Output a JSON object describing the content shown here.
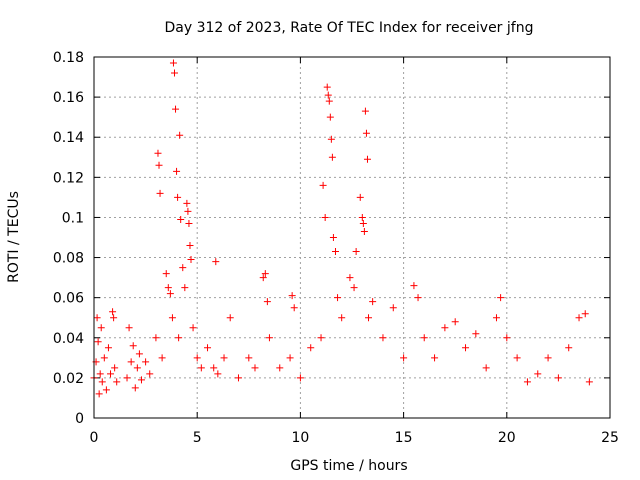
{
  "chart_data": {
    "type": "scatter",
    "title": "Day 312 of 2023, Rate Of TEC Index for receiver jfng",
    "xlabel": "GPS time / hours",
    "ylabel": "ROTI / TECUs",
    "xlim": [
      0,
      25
    ],
    "ylim": [
      0,
      0.18
    ],
    "xticks": [
      0,
      5,
      10,
      15,
      20,
      25
    ],
    "xtick_labels": [
      "0",
      "5",
      "10",
      "15",
      "20",
      "25"
    ],
    "yticks": [
      0,
      0.02,
      0.04,
      0.06,
      0.08,
      0.1,
      0.12,
      0.14,
      0.16,
      0.18
    ],
    "ytick_labels": [
      "0",
      "0.02",
      "0.04",
      "0.06",
      "0.08",
      "0.1",
      "0.12",
      "0.14",
      "0.16",
      "0.18"
    ],
    "grid": true,
    "marker": "+",
    "color": "#ff0000",
    "series": [
      {
        "name": "ROTI",
        "points": [
          [
            0.0,
            0.02
          ],
          [
            0.1,
            0.028
          ],
          [
            0.15,
            0.05
          ],
          [
            0.2,
            0.038
          ],
          [
            0.25,
            0.012
          ],
          [
            0.3,
            0.022
          ],
          [
            0.35,
            0.045
          ],
          [
            0.4,
            0.018
          ],
          [
            0.5,
            0.03
          ],
          [
            0.6,
            0.014
          ],
          [
            0.7,
            0.035
          ],
          [
            0.8,
            0.022
          ],
          [
            0.9,
            0.053
          ],
          [
            0.95,
            0.05
          ],
          [
            1.0,
            0.025
          ],
          [
            1.1,
            0.018
          ],
          [
            1.6,
            0.02
          ],
          [
            1.7,
            0.045
          ],
          [
            1.8,
            0.028
          ],
          [
            1.9,
            0.036
          ],
          [
            2.0,
            0.015
          ],
          [
            2.1,
            0.025
          ],
          [
            2.2,
            0.032
          ],
          [
            2.3,
            0.019
          ],
          [
            2.5,
            0.028
          ],
          [
            2.7,
            0.022
          ],
          [
            3.0,
            0.04
          ],
          [
            3.1,
            0.132
          ],
          [
            3.15,
            0.126
          ],
          [
            3.2,
            0.112
          ],
          [
            3.3,
            0.03
          ],
          [
            3.5,
            0.072
          ],
          [
            3.6,
            0.065
          ],
          [
            3.7,
            0.062
          ],
          [
            3.8,
            0.05
          ],
          [
            3.85,
            0.177
          ],
          [
            3.9,
            0.172
          ],
          [
            3.95,
            0.154
          ],
          [
            4.0,
            0.123
          ],
          [
            4.05,
            0.11
          ],
          [
            4.1,
            0.04
          ],
          [
            4.15,
            0.141
          ],
          [
            4.2,
            0.099
          ],
          [
            4.3,
            0.075
          ],
          [
            4.4,
            0.065
          ],
          [
            4.5,
            0.107
          ],
          [
            4.55,
            0.103
          ],
          [
            4.6,
            0.097
          ],
          [
            4.65,
            0.086
          ],
          [
            4.7,
            0.079
          ],
          [
            4.8,
            0.045
          ],
          [
            5.0,
            0.03
          ],
          [
            5.2,
            0.025
          ],
          [
            5.5,
            0.035
          ],
          [
            5.8,
            0.025
          ],
          [
            5.9,
            0.078
          ],
          [
            6.0,
            0.022
          ],
          [
            6.3,
            0.03
          ],
          [
            6.6,
            0.05
          ],
          [
            7.0,
            0.02
          ],
          [
            7.5,
            0.03
          ],
          [
            7.8,
            0.025
          ],
          [
            8.2,
            0.07
          ],
          [
            8.3,
            0.072
          ],
          [
            8.4,
            0.058
          ],
          [
            8.5,
            0.04
          ],
          [
            9.0,
            0.025
          ],
          [
            9.5,
            0.03
          ],
          [
            9.6,
            0.061
          ],
          [
            9.7,
            0.055
          ],
          [
            10.0,
            0.02
          ],
          [
            10.5,
            0.035
          ],
          [
            11.0,
            0.04
          ],
          [
            11.1,
            0.116
          ],
          [
            11.2,
            0.1
          ],
          [
            11.3,
            0.165
          ],
          [
            11.35,
            0.161
          ],
          [
            11.4,
            0.158
          ],
          [
            11.45,
            0.15
          ],
          [
            11.5,
            0.139
          ],
          [
            11.55,
            0.13
          ],
          [
            11.6,
            0.09
          ],
          [
            11.7,
            0.083
          ],
          [
            11.8,
            0.06
          ],
          [
            12.0,
            0.05
          ],
          [
            12.4,
            0.07
          ],
          [
            12.6,
            0.065
          ],
          [
            12.7,
            0.083
          ],
          [
            12.9,
            0.11
          ],
          [
            13.0,
            0.1
          ],
          [
            13.05,
            0.097
          ],
          [
            13.1,
            0.093
          ],
          [
            13.15,
            0.153
          ],
          [
            13.2,
            0.142
          ],
          [
            13.25,
            0.129
          ],
          [
            13.3,
            0.05
          ],
          [
            13.5,
            0.058
          ],
          [
            14.0,
            0.04
          ],
          [
            14.5,
            0.055
          ],
          [
            15.0,
            0.03
          ],
          [
            15.5,
            0.066
          ],
          [
            15.7,
            0.06
          ],
          [
            16.0,
            0.04
          ],
          [
            16.5,
            0.03
          ],
          [
            17.0,
            0.045
          ],
          [
            17.5,
            0.048
          ],
          [
            18.0,
            0.035
          ],
          [
            18.5,
            0.042
          ],
          [
            19.0,
            0.025
          ],
          [
            19.5,
            0.05
          ],
          [
            19.7,
            0.06
          ],
          [
            20.0,
            0.04
          ],
          [
            20.5,
            0.03
          ],
          [
            21.0,
            0.018
          ],
          [
            21.5,
            0.022
          ],
          [
            22.0,
            0.03
          ],
          [
            22.5,
            0.02
          ],
          [
            23.0,
            0.035
          ],
          [
            23.5,
            0.05
          ],
          [
            23.8,
            0.052
          ],
          [
            24.0,
            0.018
          ]
        ]
      }
    ]
  }
}
